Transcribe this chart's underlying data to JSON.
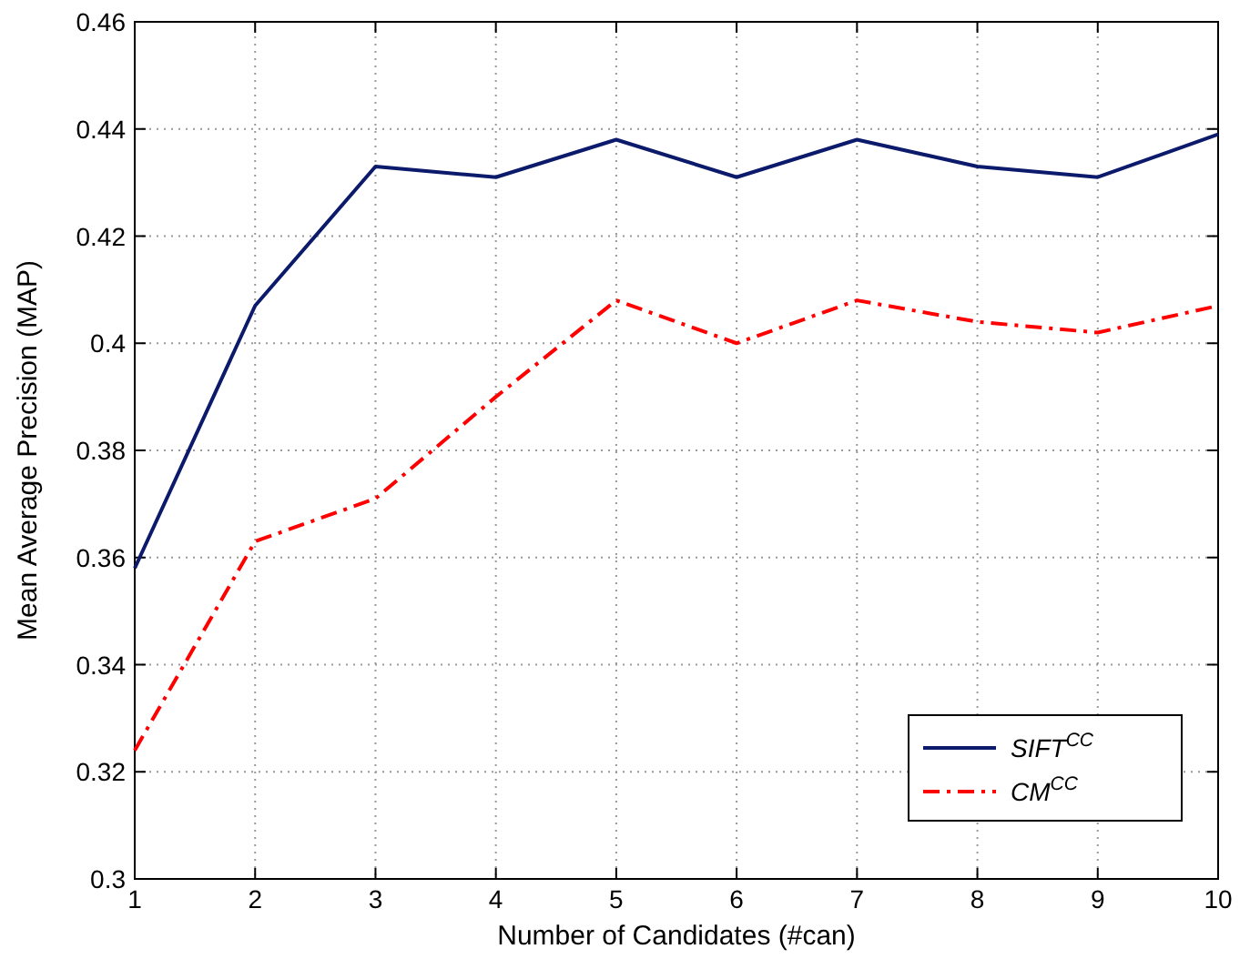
{
  "chart_data": {
    "type": "line",
    "xlabel": "Number of Candidates (#can)",
    "ylabel": "Mean Average Precision (MAP)",
    "x": [
      1,
      2,
      3,
      4,
      5,
      6,
      7,
      8,
      9,
      10
    ],
    "series": [
      {
        "name": "SIFT$^{CC}$",
        "color": "#0c1a6b",
        "line_style": "solid",
        "values": [
          0.358,
          0.407,
          0.433,
          0.431,
          0.438,
          0.431,
          0.438,
          0.433,
          0.431,
          0.439
        ]
      },
      {
        "name": "CM$^{CC}$",
        "color": "#ff0000",
        "line_style": "dashdot",
        "values": [
          0.324,
          0.363,
          0.371,
          0.39,
          0.408,
          0.4,
          0.408,
          0.404,
          0.402,
          0.407
        ]
      }
    ],
    "xlim": [
      1,
      10
    ],
    "xticks": [
      1,
      2,
      3,
      4,
      5,
      6,
      7,
      8,
      9,
      10
    ],
    "ylim": [
      0.3,
      0.46
    ],
    "yticks": [
      {
        "value": 0.3,
        "label": "0.3"
      },
      {
        "value": 0.32,
        "label": "0.32"
      },
      {
        "value": 0.34,
        "label": "0.34"
      },
      {
        "value": 0.36,
        "label": "0.36"
      },
      {
        "value": 0.38,
        "label": "0.38"
      },
      {
        "value": 0.4,
        "label": "0.4"
      },
      {
        "value": 0.42,
        "label": "0.42"
      },
      {
        "value": 0.44,
        "label": "0.44"
      },
      {
        "value": 0.46,
        "label": "0.46"
      }
    ],
    "grid": true,
    "legend": "bottom right",
    "marker": "none"
  }
}
